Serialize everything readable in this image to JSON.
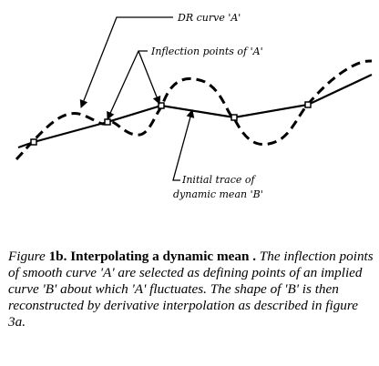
{
  "labels": {
    "dr_curve": "DR curve 'A'",
    "inflection_points": "Inflection points of 'A'",
    "initial_trace_line1": "Initial trace of",
    "initial_trace_line2": "dynamic mean 'B'"
  },
  "caption": {
    "figure_prefix": "Figure ",
    "figure_number": "1b",
    "figure_title": ". Interpolating a dynamic mean .",
    "body": "   The inflection points of smooth curve 'A' are selected as defining points of an implied curve 'B' about which 'A' fluctuates.  The shape of 'B' is then reconstructed by derivative interpolation as described in figure 3a."
  }
}
